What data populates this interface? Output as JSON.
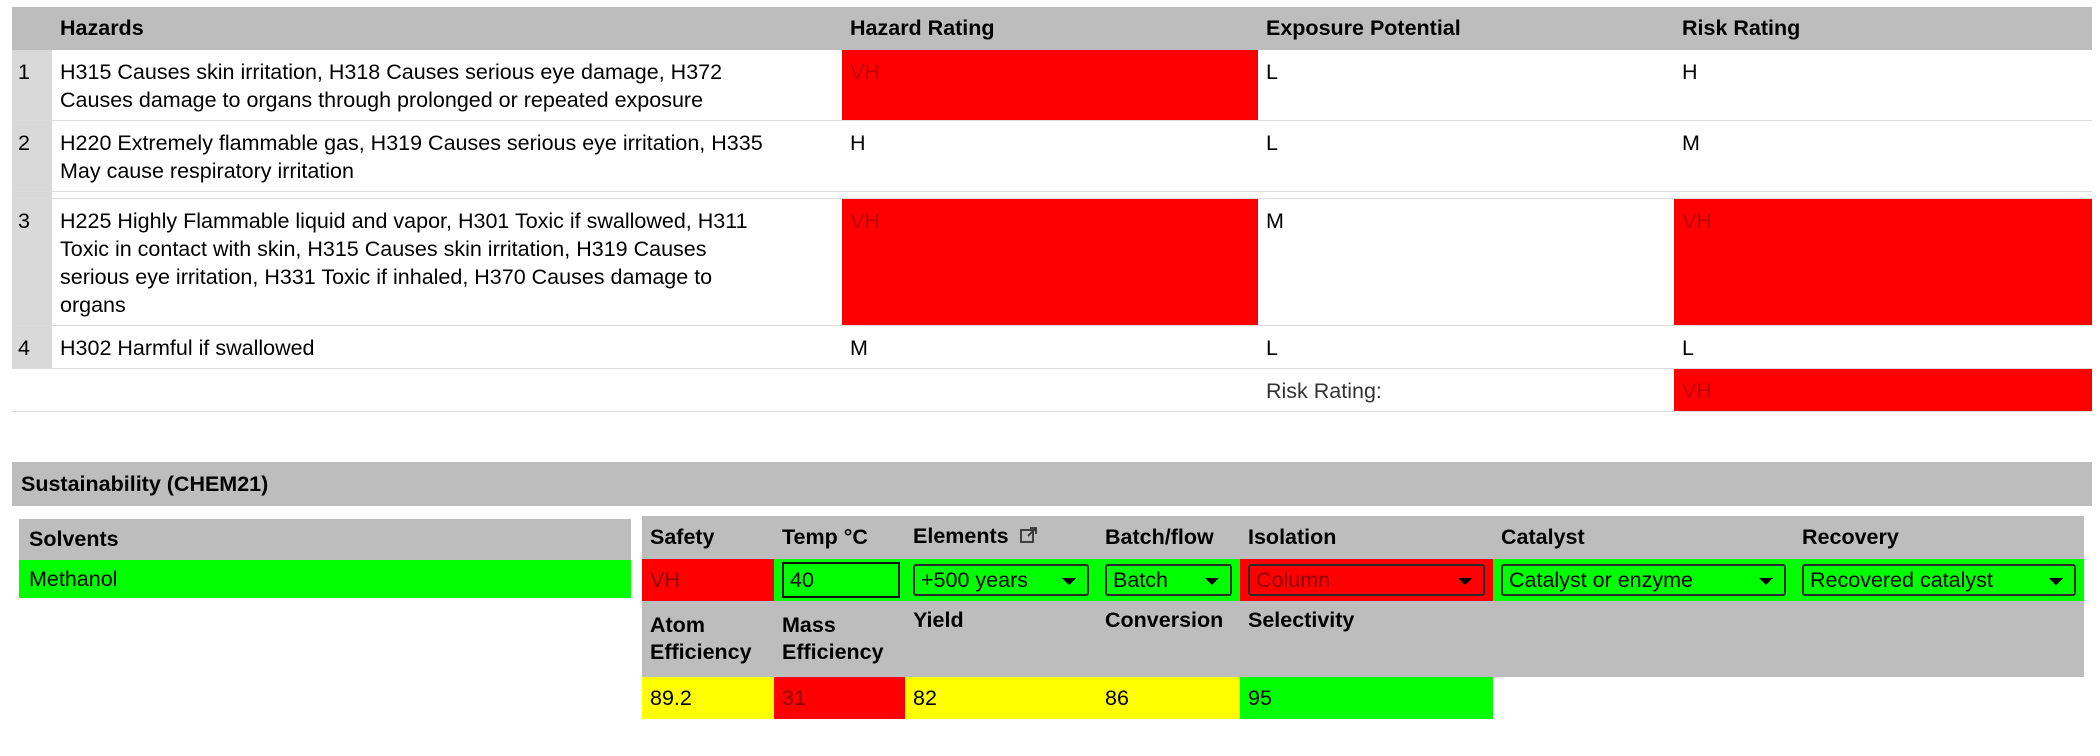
{
  "hazards": {
    "headers": {
      "hazards": "Hazards",
      "hazard_rating": "Hazard Rating",
      "exposure": "Exposure Potential",
      "risk": "Risk Rating"
    },
    "rows": [
      {
        "num": "1",
        "text_line1": "H315 Causes skin irritation, H318 Causes serious eye damage, H372",
        "text_line2": "Causes damage to organs through prolonged or repeated exposure",
        "hazard_rating": "VH",
        "exposure": "L",
        "risk": "H"
      },
      {
        "num": "2",
        "text_line1": "H220 Extremely flammable gas, H319 Causes serious eye irritation, H335",
        "text_line2": "May cause respiratory irritation",
        "hazard_rating": "H",
        "exposure": "L",
        "risk": "M"
      },
      {
        "num": "3",
        "text_line1": "H225 Highly Flammable liquid and vapor, H301 Toxic if swallowed, H311",
        "text_line2": "Toxic in contact with skin, H315 Causes skin irritation, H319 Causes",
        "text_line3": "serious eye irritation, H331 Toxic if inhaled, H370 Causes damage to",
        "text_line4": "organs",
        "hazard_rating": "VH",
        "exposure": "M",
        "risk": "VH"
      },
      {
        "num": "4",
        "text_line1": "H302 Harmful if swallowed",
        "hazard_rating": "M",
        "exposure": "L",
        "risk": "L"
      }
    ],
    "summary_label": "Risk Rating:",
    "summary_value": "VH"
  },
  "sustainability": {
    "title": "Sustainability (CHEM21)",
    "solvents_header": "Solvents",
    "solvents": [
      "Methanol"
    ],
    "headers_row1": {
      "safety": "Safety",
      "temp": "Temp °C",
      "elements": "Elements",
      "batch_flow": "Batch/flow",
      "isolation": "Isolation",
      "catalyst": "Catalyst",
      "recovery": "Recovery"
    },
    "values_row1": {
      "safety": "VH",
      "temp": "40",
      "elements": "+500 years",
      "batch_flow": "Batch",
      "isolation": "Column",
      "catalyst": "Catalyst or enzyme",
      "recovery": "Recovered catalyst"
    },
    "headers_row2": {
      "atom_efficiency_1": "Atom",
      "atom_efficiency_2": "Efficiency",
      "mass_efficiency_1": "Mass",
      "mass_efficiency_2": "Efficiency",
      "yield": "Yield",
      "conversion": "Conversion",
      "selectivity": "Selectivity"
    },
    "values_row2": {
      "atom_efficiency": "89.2",
      "mass_efficiency": "31",
      "yield": "82",
      "conversion": "86",
      "selectivity": "95"
    }
  },
  "colors": {
    "red": "#ff0000",
    "green": "#00ff00",
    "yellow": "#ffff00",
    "header_gray": "#bdbdbd"
  }
}
